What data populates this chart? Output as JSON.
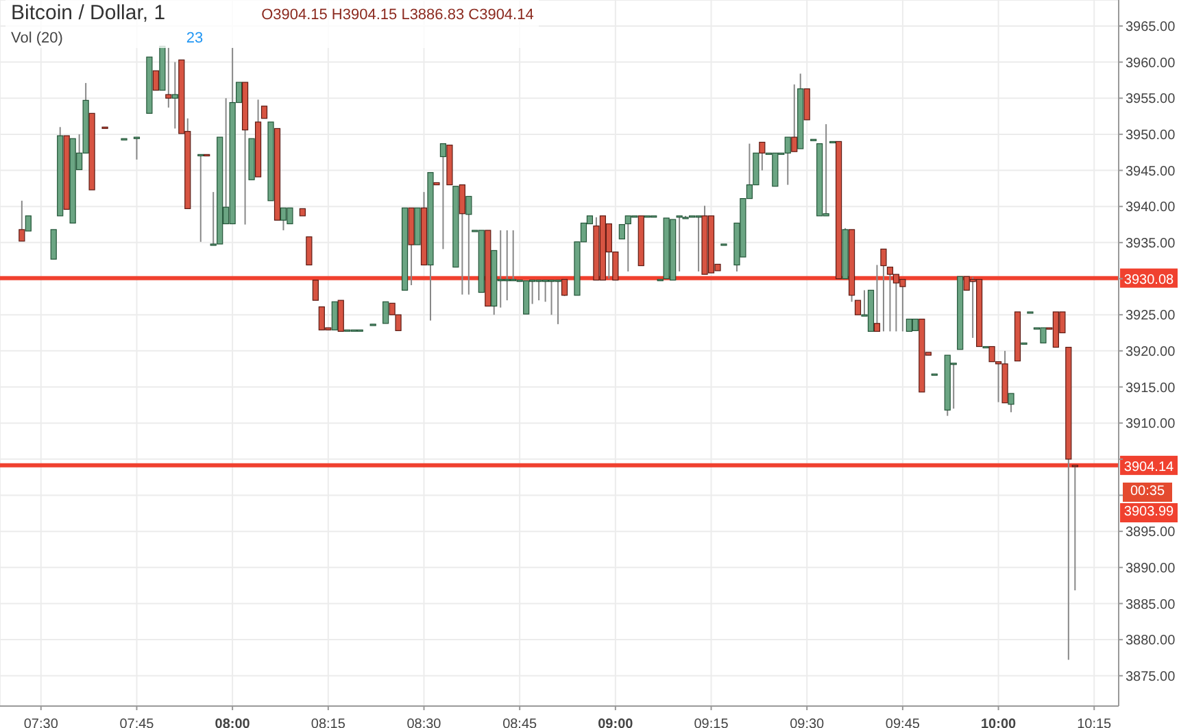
{
  "chart_data": {
    "type": "candlestick",
    "title": "Bitcoin / Dollar, 1",
    "subtitle": "O3904.15 H3904.15 L3886.83 C3904.14",
    "annotations": [
      "Vol (20)",
      "23",
      "00:35",
      "3903.99"
    ],
    "x": [
      7.45,
      7.467,
      7.533,
      7.55,
      7.567,
      7.583,
      7.6,
      7.617,
      7.633,
      7.667,
      7.717,
      7.75,
      7.783,
      7.8,
      7.817,
      7.833,
      7.85,
      7.867,
      7.883,
      7.917,
      7.933,
      7.95,
      7.967,
      7.983,
      8.0,
      8.017,
      8.033,
      8.05,
      8.067,
      8.083,
      8.1,
      8.117,
      8.133,
      8.15,
      8.183,
      8.2,
      8.217,
      8.233,
      8.25,
      8.267,
      8.283,
      8.3,
      8.317,
      8.333,
      8.367,
      8.4,
      8.417,
      8.433,
      8.45,
      8.467,
      8.483,
      8.5,
      8.517,
      8.533,
      8.55,
      8.567,
      8.583,
      8.6,
      8.617,
      8.633,
      8.65,
      8.667,
      8.683,
      8.7,
      8.717,
      8.733,
      8.75,
      8.767,
      8.783,
      8.8,
      8.817,
      8.833,
      8.85,
      8.867,
      8.9,
      8.917,
      8.933,
      8.95,
      8.967,
      8.983,
      9.0,
      9.017,
      9.033,
      9.05,
      9.067,
      9.083,
      9.1,
      9.117,
      9.133,
      9.15,
      9.167,
      9.183,
      9.2,
      9.217,
      9.233,
      9.25,
      9.267,
      9.283,
      9.317,
      9.333,
      9.35,
      9.367,
      9.383,
      9.4,
      9.417,
      9.433,
      9.45,
      9.467,
      9.483,
      9.5,
      9.517,
      9.533,
      9.55,
      9.567,
      9.583,
      9.6,
      9.617,
      9.633,
      9.65,
      9.667,
      9.683,
      9.7,
      9.717,
      9.733,
      9.75,
      9.767,
      9.783,
      9.8,
      9.817,
      9.833,
      9.867,
      9.883,
      9.9,
      9.917,
      9.933,
      9.95,
      9.967,
      9.983,
      10.0,
      10.017,
      10.033,
      10.05,
      10.067,
      10.083,
      10.1,
      10.117,
      10.133,
      10.15,
      10.167,
      10.183,
      10.2
    ],
    "ohlc": [
      [
        3936.8,
        3940.8,
        3935.2,
        3935.2
      ],
      [
        3936.6,
        3938.7,
        3936.6,
        3938.7
      ],
      [
        3932.7,
        3936.8,
        3932.7,
        3936.8
      ],
      [
        3938.7,
        3951.0,
        3938.7,
        3949.8
      ],
      [
        3949.8,
        3949.8,
        3939.6,
        3939.6
      ],
      [
        3937.7,
        3949.4,
        3937.7,
        3949.4
      ],
      [
        3945.1,
        3950.0,
        3945.1,
        3947.4
      ],
      [
        3947.4,
        3957.1,
        3947.4,
        3954.7
      ],
      [
        3952.9,
        3952.9,
        3942.3,
        3942.3
      ],
      [
        3951.0,
        3951.0,
        3950.8,
        3950.8
      ],
      [
        3949.4,
        3949.4,
        3949.4,
        3949.4
      ],
      [
        3949.4,
        3949.6,
        3946.5,
        3949.6
      ],
      [
        3952.9,
        3960.7,
        3952.9,
        3960.7
      ],
      [
        3958.8,
        3958.8,
        3956.1,
        3956.1
      ],
      [
        3956.1,
        3962.2,
        3956.1,
        3962.2
      ],
      [
        3955.5,
        3962.0,
        3953.7,
        3955.0
      ],
      [
        3955.0,
        3960.0,
        3950.8,
        3955.5
      ],
      [
        3960.3,
        3960.3,
        3950.1,
        3950.1
      ],
      [
        3950.4,
        3952.2,
        3939.7,
        3939.7
      ],
      [
        3947.2,
        3947.2,
        3935.1,
        3947.2
      ],
      [
        3947.2,
        3947.2,
        3947.0,
        3947.0
      ],
      [
        3934.8,
        3942.0,
        3934.8,
        3934.8
      ],
      [
        3934.8,
        3949.6,
        3934.8,
        3949.6
      ],
      [
        3937.6,
        3955.0,
        3937.6,
        3939.9
      ],
      [
        3937.6,
        3962.0,
        3937.6,
        3954.4
      ],
      [
        3954.4,
        3957.2,
        3954.4,
        3957.2
      ],
      [
        3957.2,
        3957.2,
        3937.5,
        3950.6
      ],
      [
        3943.7,
        3949.4,
        3943.7,
        3949.4
      ],
      [
        3951.7,
        3954.8,
        3944.1,
        3944.1
      ],
      [
        3953.9,
        3953.9,
        3952.2,
        3952.2
      ],
      [
        3940.8,
        3951.7,
        3940.8,
        3951.7
      ],
      [
        3950.8,
        3950.8,
        3938.1,
        3938.1
      ],
      [
        3938.1,
        3939.8,
        3936.7,
        3939.8
      ],
      [
        3937.6,
        3939.8,
        3937.6,
        3939.8
      ],
      [
        3939.7,
        3939.7,
        3938.7,
        3938.7
      ],
      [
        3935.8,
        3935.8,
        3931.9,
        3931.9
      ],
      [
        3929.8,
        3929.8,
        3927.0,
        3927.0
      ],
      [
        3926.1,
        3926.1,
        3922.9,
        3922.9
      ],
      [
        3923.2,
        3923.2,
        3922.9,
        3922.9
      ],
      [
        3922.9,
        3926.8,
        3922.9,
        3926.8
      ],
      [
        3927.0,
        3927.0,
        3922.7,
        3922.7
      ],
      [
        3922.9,
        3922.9,
        3922.9,
        3922.9
      ],
      [
        3922.9,
        3922.9,
        3922.9,
        3922.9
      ],
      [
        3922.9,
        3922.9,
        3922.9,
        3922.9
      ],
      [
        3923.5,
        3923.7,
        3923.5,
        3923.7
      ],
      [
        3923.8,
        3926.8,
        3923.8,
        3926.8
      ],
      [
        3926.6,
        3926.6,
        3925.0,
        3925.0
      ],
      [
        3925.0,
        3925.0,
        3922.8,
        3922.8
      ],
      [
        3928.4,
        3939.8,
        3928.4,
        3939.8
      ],
      [
        3939.8,
        3939.8,
        3929.1,
        3934.7
      ],
      [
        3934.7,
        3939.8,
        3934.7,
        3939.8
      ],
      [
        3939.8,
        3942.0,
        3931.9,
        3931.9
      ],
      [
        3931.9,
        3944.7,
        3924.2,
        3944.7
      ],
      [
        3943.3,
        3943.3,
        3943.0,
        3943.0
      ],
      [
        3946.9,
        3948.7,
        3934.1,
        3948.7
      ],
      [
        3948.5,
        3948.5,
        3943.0,
        3943.0
      ],
      [
        3931.6,
        3942.8,
        3931.6,
        3942.8
      ],
      [
        3943.0,
        3943.0,
        3927.8,
        3939.0
      ],
      [
        3938.9,
        3941.4,
        3927.8,
        3941.4
      ],
      [
        3936.7,
        3936.7,
        3936.7,
        3936.7
      ],
      [
        3928.1,
        3936.7,
        3928.1,
        3936.7
      ],
      [
        3936.7,
        3936.7,
        3926.2,
        3926.2
      ],
      [
        3926.2,
        3933.9,
        3925.0,
        3933.9
      ],
      [
        3929.9,
        3936.7,
        3926.0,
        3929.9
      ],
      [
        3929.9,
        3936.7,
        3927.0,
        3929.9
      ],
      [
        3929.9,
        3936.7,
        3929.9,
        3929.9
      ],
      [
        3929.8,
        3929.8,
        3929.8,
        3929.8
      ],
      [
        3925.1,
        3929.7,
        3925.1,
        3929.7
      ],
      [
        3929.8,
        3929.8,
        3926.5,
        3929.8
      ],
      [
        3929.8,
        3929.8,
        3927.0,
        3929.8
      ],
      [
        3929.8,
        3929.8,
        3926.8,
        3929.8
      ],
      [
        3929.8,
        3929.8,
        3925.0,
        3929.8
      ],
      [
        3929.8,
        3929.8,
        3923.7,
        3929.8
      ],
      [
        3929.9,
        3930.0,
        3927.6,
        3927.7
      ],
      [
        3927.7,
        3935.1,
        3927.7,
        3935.1
      ],
      [
        3935.1,
        3937.7,
        3935.1,
        3937.7
      ],
      [
        3937.6,
        3938.7,
        3937.6,
        3938.7
      ],
      [
        3937.3,
        3938.5,
        3929.8,
        3929.8
      ],
      [
        3938.7,
        3938.7,
        3929.8,
        3929.8
      ],
      [
        3937.6,
        3937.6,
        3930.0,
        3933.7
      ],
      [
        3933.7,
        3933.7,
        3929.8,
        3929.8
      ],
      [
        3935.5,
        3937.5,
        3935.5,
        3937.5
      ],
      [
        3937.6,
        3938.7,
        3931.0,
        3938.7
      ],
      [
        3938.7,
        3938.7,
        3938.7,
        3938.7
      ],
      [
        3938.7,
        3938.7,
        3931.8,
        3931.8
      ],
      [
        3938.7,
        3938.7,
        3938.7,
        3938.7
      ],
      [
        3938.7,
        3938.7,
        3938.7,
        3938.7
      ],
      [
        3929.9,
        3929.9,
        3929.9,
        3929.9
      ],
      [
        3930.0,
        3938.4,
        3930.0,
        3938.4
      ],
      [
        3929.8,
        3938.2,
        3929.8,
        3938.2
      ],
      [
        3938.7,
        3938.7,
        3931.0,
        3938.7
      ],
      [
        3938.4,
        3938.7,
        3938.4,
        3938.5
      ],
      [
        3938.7,
        3938.7,
        3938.7,
        3938.7
      ],
      [
        3938.7,
        3938.7,
        3931.0,
        3938.7
      ],
      [
        3938.7,
        3940.1,
        3930.6,
        3930.6
      ],
      [
        3938.7,
        3938.7,
        3930.8,
        3930.8
      ],
      [
        3932.0,
        3932.0,
        3931.1,
        3931.1
      ],
      [
        3934.8,
        3934.8,
        3934.8,
        3934.8
      ],
      [
        3931.9,
        3937.7,
        3931.0,
        3937.7
      ],
      [
        3933.0,
        3941.1,
        3933.0,
        3941.1
      ],
      [
        3941.1,
        3948.7,
        3941.1,
        3943.0
      ],
      [
        3943.0,
        3947.4,
        3943.0,
        3947.4
      ],
      [
        3948.9,
        3948.9,
        3945.0,
        3947.4
      ],
      [
        3947.4,
        3947.4,
        3947.4,
        3947.4
      ],
      [
        3942.8,
        3947.4,
        3942.8,
        3947.4
      ],
      [
        3947.4,
        3947.4,
        3947.4,
        3947.4
      ],
      [
        3947.4,
        3949.6,
        3943.0,
        3949.6
      ],
      [
        3949.6,
        3956.9,
        3947.6,
        3947.6
      ],
      [
        3948.0,
        3958.4,
        3948.0,
        3956.3
      ],
      [
        3956.3,
        3956.3,
        3952.0,
        3952.0
      ],
      [
        3949.3,
        3949.3,
        3949.3,
        3949.3
      ],
      [
        3938.7,
        3948.7,
        3938.7,
        3948.7
      ],
      [
        3938.7,
        3951.4,
        3938.7,
        3939.0
      ],
      [
        3949.0,
        3949.0,
        3949.0,
        3949.0
      ],
      [
        3949.0,
        3949.0,
        3930.0,
        3930.0
      ],
      [
        3930.0,
        3937.0,
        3930.0,
        3936.8
      ],
      [
        3936.8,
        3936.8,
        3926.8,
        3927.7
      ],
      [
        3927.0,
        3927.0,
        3925.0,
        3925.0
      ],
      [
        3925.0,
        3928.4,
        3925.0,
        3925.0
      ],
      [
        3922.7,
        3928.4,
        3922.7,
        3928.4
      ],
      [
        3923.8,
        3931.9,
        3922.7,
        3922.7
      ],
      [
        3934.1,
        3934.1,
        3922.7,
        3931.8
      ],
      [
        3931.6,
        3931.6,
        3922.7,
        3930.6
      ],
      [
        3930.6,
        3930.6,
        3922.7,
        3929.4
      ],
      [
        3929.9,
        3929.9,
        3922.7,
        3928.9
      ],
      [
        3922.7,
        3924.4,
        3922.7,
        3924.4
      ],
      [
        3922.8,
        3924.4,
        3922.8,
        3924.4
      ],
      [
        3924.4,
        3924.4,
        3914.3,
        3914.3
      ],
      [
        3919.8,
        3919.8,
        3919.4,
        3919.4
      ],
      [
        3916.8,
        3916.8,
        3916.8,
        3916.8
      ],
      [
        3911.8,
        3919.4,
        3911.0,
        3919.4
      ],
      [
        3918.3,
        3918.3,
        3912.0,
        3918.3
      ],
      [
        3920.2,
        3930.3,
        3920.2,
        3930.3
      ],
      [
        3930.3,
        3930.3,
        3928.4,
        3928.4
      ],
      [
        3929.9,
        3930.2,
        3921.8,
        3929.6
      ],
      [
        3929.9,
        3929.9,
        3920.6,
        3920.6
      ],
      [
        3920.6,
        3920.6,
        3920.6,
        3920.6
      ],
      [
        3920.6,
        3920.6,
        3918.5,
        3918.5
      ],
      [
        3918.5,
        3918.5,
        3912.9,
        3918.2
      ],
      [
        3918.2,
        3920.0,
        3912.8,
        3912.8
      ],
      [
        3912.6,
        3914.1,
        3911.5,
        3914.1
      ],
      [
        3925.4,
        3925.4,
        3918.6,
        3918.6
      ],
      [
        3921.1,
        3921.1,
        3921.1,
        3921.1
      ],
      [
        3925.4,
        3925.4,
        3925.4,
        3925.4
      ],
      [
        3923.2,
        3923.2,
        3923.2,
        3923.2
      ],
      [
        3921.1,
        3923.2,
        3921.1,
        3923.2
      ],
      [
        3923.2,
        3923.2,
        3923.0,
        3923.0
      ],
      [
        3925.4,
        3925.4,
        3920.5,
        3920.5
      ],
      [
        3925.4,
        3925.4,
        3922.5,
        3922.5
      ],
      [
        3920.5,
        3920.5,
        3877.2,
        3905.0
      ],
      [
        3904.15,
        3904.15,
        3886.83,
        3904.14
      ]
    ],
    "xlim": [
      7.393,
      10.314
    ],
    "xticks": [
      {
        "value": 7.5,
        "label": "07:30"
      },
      {
        "value": 7.75,
        "label": "07:45"
      },
      {
        "value": 8,
        "label": "08:00"
      },
      {
        "value": 8.25,
        "label": "08:15"
      },
      {
        "value": 8.5,
        "label": "08:30"
      },
      {
        "value": 8.75,
        "label": "08:45"
      },
      {
        "value": 9,
        "label": "09:00"
      },
      {
        "value": 9.25,
        "label": "09:15"
      },
      {
        "value": 9.5,
        "label": "09:30"
      },
      {
        "value": 9.75,
        "label": "09:45"
      },
      {
        "value": 10,
        "label": "10:00"
      },
      {
        "value": 10.25,
        "label": "10:15"
      }
    ],
    "ylim": [
      3870.8,
      3968.6
    ],
    "yticks": [
      {
        "value": 3875,
        "label": "3875.00"
      },
      {
        "value": 3880,
        "label": "3880.00"
      },
      {
        "value": 3885,
        "label": "3885.00"
      },
      {
        "value": 3890,
        "label": "3890.00"
      },
      {
        "value": 3895,
        "label": "3895.00"
      },
      {
        "value": 3900,
        "label": null
      },
      {
        "value": 3905,
        "label": null
      },
      {
        "value": 3910,
        "label": "3910.00"
      },
      {
        "value": 3915,
        "label": "3915.00"
      },
      {
        "value": 3920,
        "label": "3920.00"
      },
      {
        "value": 3925,
        "label": "3925.00"
      },
      {
        "value": 3930,
        "label": null
      },
      {
        "value": 3935,
        "label": "3935.00"
      },
      {
        "value": 3940,
        "label": "3940.00"
      },
      {
        "value": 3945,
        "label": "3945.00"
      },
      {
        "value": 3950,
        "label": "3950.00"
      },
      {
        "value": 3955,
        "label": "3955.00"
      },
      {
        "value": 3960,
        "label": "3960.00"
      },
      {
        "value": 3965,
        "label": "3965.00"
      }
    ],
    "ref_lines": [
      {
        "axis": "y",
        "value": 3930.08,
        "label": "3930.08",
        "color": "#f0412f"
      },
      {
        "axis": "y",
        "value": 3904.14,
        "label": "3904.14",
        "color": "#f0412f"
      }
    ],
    "grid": true
  }
}
